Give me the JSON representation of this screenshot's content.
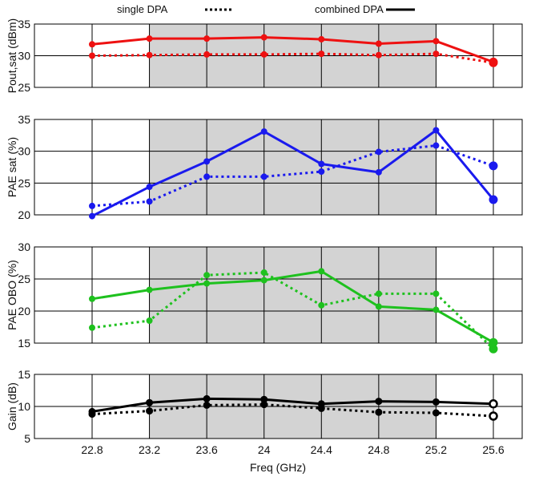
{
  "chart_data": {
    "type": "line",
    "xlabel": "Freq (GHz)",
    "x": [
      22.8,
      23.2,
      23.6,
      24.0,
      24.4,
      24.8,
      25.2,
      25.6
    ],
    "x_tick_labels": [
      "22.8",
      "23.2",
      "23.6",
      "24",
      "24.4",
      "24.8",
      "25.2",
      "25.6"
    ],
    "xlim": [
      22.8,
      25.6
    ],
    "shaded_x_range": [
      23.2,
      25.2
    ],
    "grid": true,
    "legend": {
      "placement": "top",
      "entries": [
        {
          "label": "single DPA",
          "style": "dotted"
        },
        {
          "label": "combined DPA",
          "style": "solid"
        }
      ]
    },
    "panels": [
      {
        "ylabel": "Pout,sat (dBm)",
        "ylim": [
          25,
          35
        ],
        "yticks": [
          25,
          30,
          35
        ],
        "color": "#ee1111",
        "marker": "filled",
        "series": [
          {
            "name": "single DPA",
            "style": "dotted",
            "values": [
              30.0,
              30.1,
              30.2,
              30.2,
              30.3,
              30.1,
              30.3,
              28.9
            ]
          },
          {
            "name": "combined DPA",
            "style": "solid",
            "values": [
              31.8,
              32.7,
              32.7,
              32.9,
              32.6,
              31.9,
              32.3,
              29.0
            ]
          }
        ]
      },
      {
        "ylabel": "PAE sat (%)",
        "ylim": [
          20,
          35
        ],
        "yticks": [
          20,
          25,
          30,
          35
        ],
        "color": "#1a1aee",
        "marker": "filled",
        "series": [
          {
            "name": "single DPA",
            "style": "dotted",
            "values": [
              21.4,
              22.1,
              26.0,
              26.0,
              26.8,
              29.9,
              30.9,
              27.7
            ]
          },
          {
            "name": "combined DPA",
            "style": "solid",
            "values": [
              19.8,
              24.4,
              28.4,
              33.1,
              28.0,
              26.7,
              33.3,
              22.4
            ]
          }
        ]
      },
      {
        "ylabel": "PAE OBO (%)",
        "ylim": [
          15,
          30
        ],
        "yticks": [
          15,
          20,
          25,
          30
        ],
        "color": "#1ec11e",
        "marker": "filled",
        "series": [
          {
            "name": "single DPA",
            "style": "dotted",
            "values": [
              17.4,
              18.5,
              25.6,
              26.0,
              20.9,
              22.7,
              22.7,
              14.1
            ]
          },
          {
            "name": "combined DPA",
            "style": "solid",
            "values": [
              21.9,
              23.3,
              24.3,
              24.8,
              26.2,
              20.7,
              20.2,
              15.1
            ]
          }
        ]
      },
      {
        "ylabel": "Gain (dB)",
        "ylim": [
          5,
          15
        ],
        "yticks": [
          5,
          10,
          15
        ],
        "color": "#000000",
        "marker": "open",
        "series": [
          {
            "name": "single DPA",
            "style": "dotted",
            "values": [
              8.8,
              9.3,
              10.2,
              10.3,
              9.7,
              9.1,
              9.0,
              8.5
            ]
          },
          {
            "name": "combined DPA",
            "style": "solid",
            "values": [
              9.2,
              10.6,
              11.2,
              11.1,
              10.4,
              10.8,
              10.7,
              10.4
            ]
          }
        ]
      }
    ]
  }
}
